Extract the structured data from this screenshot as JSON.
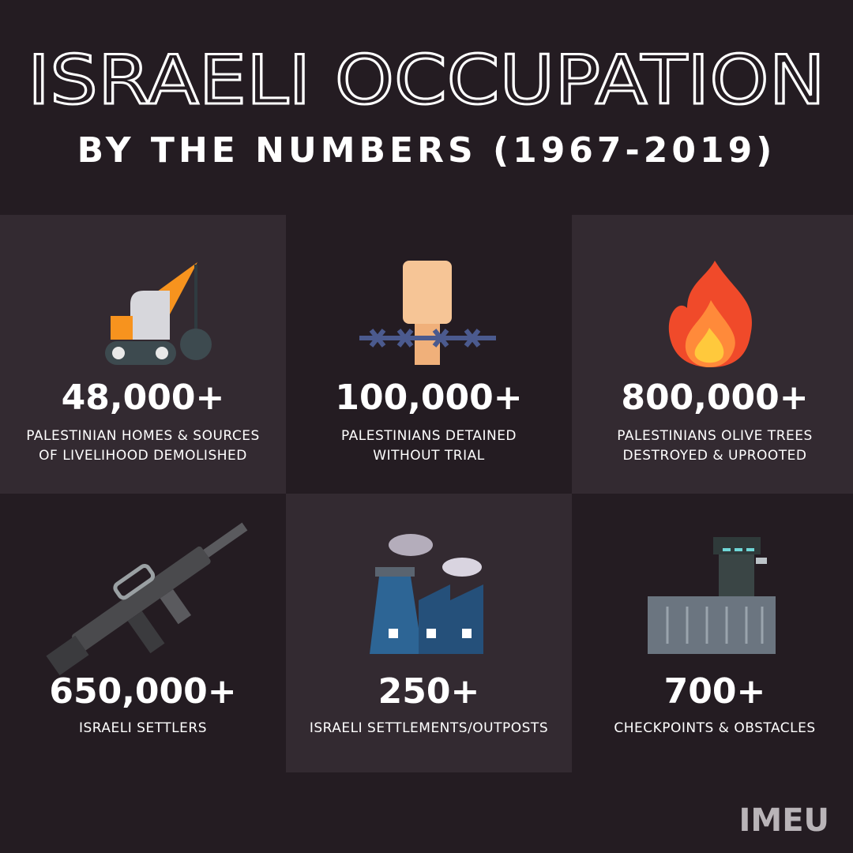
{
  "header": {
    "title": "ISRAELI OCCUPATION",
    "subtitle": "BY THE NUMBERS (1967-2019)"
  },
  "cards": [
    {
      "stat": "48,000+",
      "label": [
        "PALESTINIAN HOMES & SOURCES",
        "OF LIVELIHOOD DEMOLISHED"
      ]
    },
    {
      "stat": "100,000+",
      "label": [
        "PALESTINIANS DETAINED",
        "WITHOUT TRIAL"
      ]
    },
    {
      "stat": "800,000+",
      "label": [
        "PALESTINIANS OLIVE TREES",
        "DESTROYED & UPROOTED"
      ]
    },
    {
      "stat": "650,000+",
      "label": [
        "ISRAELI SETTLERS"
      ]
    },
    {
      "stat": "250+",
      "label": [
        "ISRAELI SETTLEMENTS/OUTPOSTS"
      ]
    },
    {
      "stat": "700+",
      "label": [
        "CHECKPOINTS & OBSTACLES"
      ]
    }
  ],
  "logo": "IMEU"
}
